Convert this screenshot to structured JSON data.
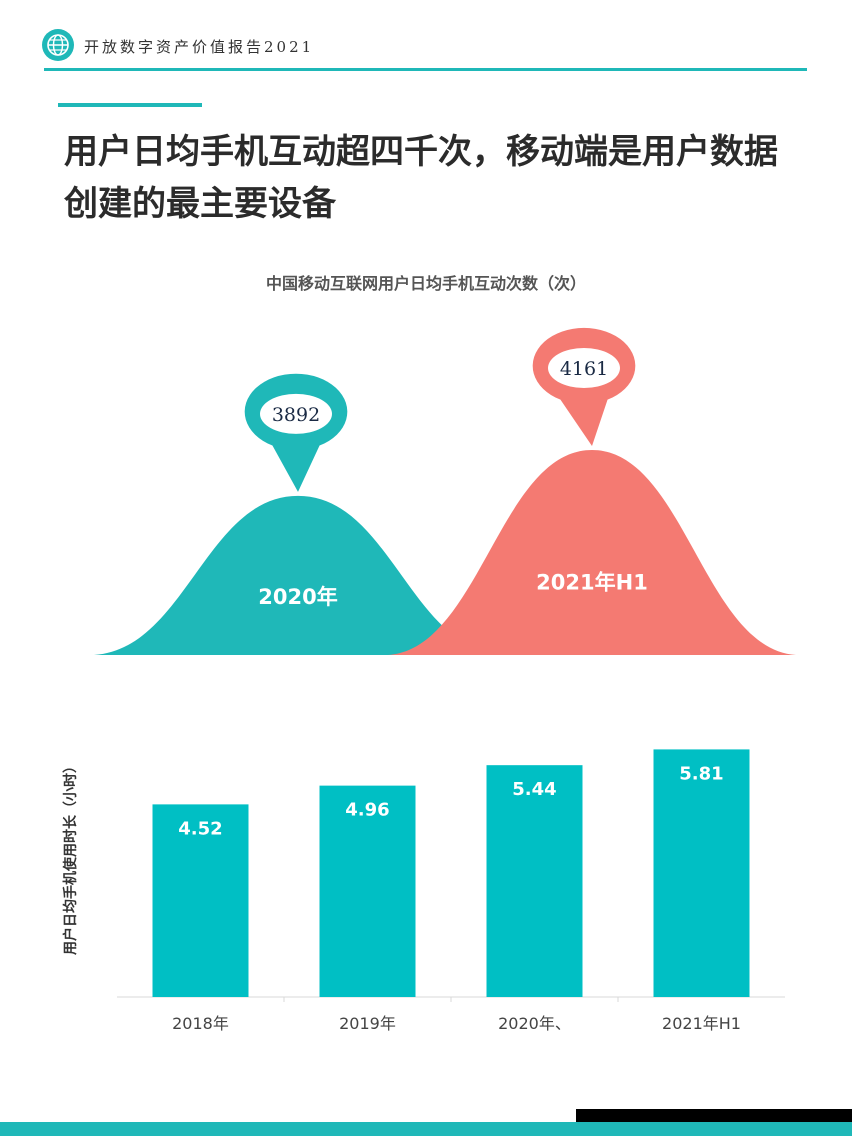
{
  "header": {
    "report_title": "开放数字资产价值报告2021",
    "accent_color": "#1FB8B8"
  },
  "page_title": "用户日均手机互动超四千次，移动端是用户数据创建的最主要设备",
  "colors": {
    "teal": "#1FB8B8",
    "coral": "#F47A72",
    "bar": "#00BFC4"
  },
  "chart_data": [
    {
      "type": "area",
      "title": "中国移动互联网用户日均手机互动次数（次）",
      "categories": [
        "2020年",
        "2021年H1"
      ],
      "values": [
        3892,
        4161
      ],
      "value_labels": [
        "3892",
        "4161"
      ]
    },
    {
      "type": "bar",
      "title": "",
      "ylabel": "用户日均手机使用时长（小时）",
      "xlabel": "",
      "categories": [
        "2018年",
        "2019年",
        "2020年、",
        "2021年H1"
      ],
      "values": [
        4.52,
        4.96,
        5.44,
        5.81
      ],
      "value_labels": [
        "4.52",
        "4.96",
        "5.44",
        "5.81"
      ],
      "ylim": [
        0,
        6.5
      ],
      "grid": false
    }
  ]
}
